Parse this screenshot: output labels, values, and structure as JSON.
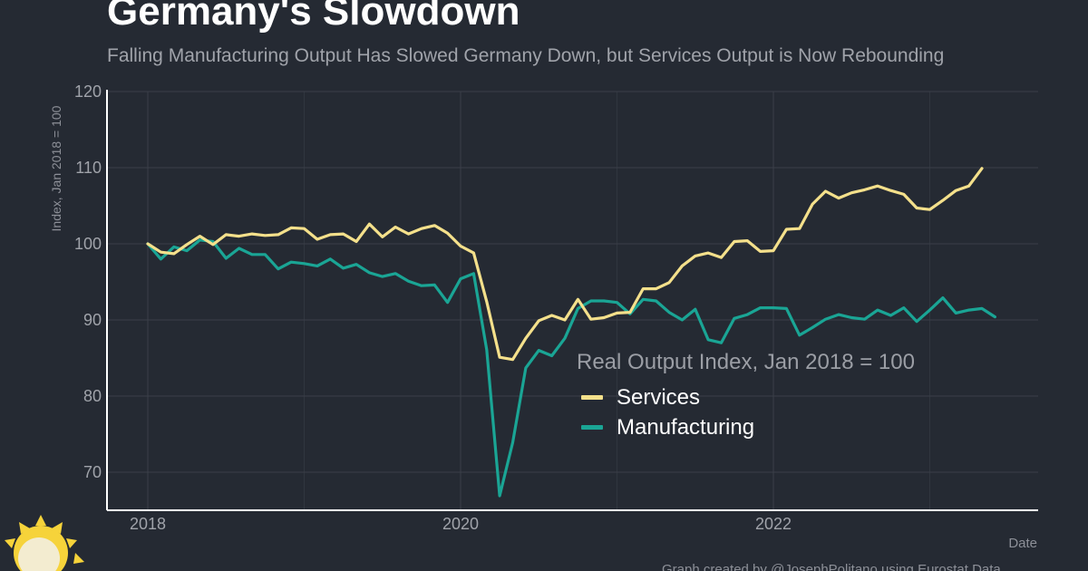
{
  "title": "Germany's Slowdown",
  "subtitle": "Falling Manufacturing Output Has Slowed Germany Down, but Services Output is Now Rebounding",
  "caption": "Graph created by @JosephPolitano using Eurostat Data",
  "colors": {
    "background": "#252a33",
    "grid": "#3a3f48",
    "axis": "#ffffff",
    "services": "#f4e08b",
    "manufacturing": "#1aa595"
  },
  "chart_data": {
    "type": "line",
    "title": "Germany's Slowdown",
    "subtitle": "Falling Manufacturing Output Has Slowed Germany Down, but Services Output is Now Rebounding",
    "xlabel": "Date",
    "ylabel": "Index, Jan 2018 = 100",
    "ylim": [
      65,
      120
    ],
    "xlim": [
      "2017-11",
      "2023-08"
    ],
    "yticks": [
      70,
      80,
      90,
      100,
      110,
      120
    ],
    "xticks": [
      "2018",
      "2020",
      "2022"
    ],
    "grid": true,
    "legend": {
      "title": "Real Output Index, Jan 2018 = 100",
      "placement": "center-right"
    },
    "x": [
      "2018-01",
      "2018-02",
      "2018-03",
      "2018-04",
      "2018-05",
      "2018-06",
      "2018-07",
      "2018-08",
      "2018-09",
      "2018-10",
      "2018-11",
      "2018-12",
      "2019-01",
      "2019-02",
      "2019-03",
      "2019-04",
      "2019-05",
      "2019-06",
      "2019-07",
      "2019-08",
      "2019-09",
      "2019-10",
      "2019-11",
      "2019-12",
      "2020-01",
      "2020-02",
      "2020-03",
      "2020-04",
      "2020-05",
      "2020-06",
      "2020-07",
      "2020-08",
      "2020-09",
      "2020-10",
      "2020-11",
      "2020-12",
      "2021-01",
      "2021-02",
      "2021-03",
      "2021-04",
      "2021-05",
      "2021-06",
      "2021-07",
      "2021-08",
      "2021-09",
      "2021-10",
      "2021-11",
      "2021-12",
      "2022-01",
      "2022-02",
      "2022-03",
      "2022-04",
      "2022-05",
      "2022-06",
      "2022-07",
      "2022-08",
      "2022-09",
      "2022-10",
      "2022-11",
      "2022-12",
      "2023-01",
      "2023-02",
      "2023-03",
      "2023-04",
      "2023-05",
      "2023-06"
    ],
    "series": [
      {
        "name": "Services",
        "values": [
          100.0,
          98.9,
          98.7,
          99.9,
          101.0,
          99.9,
          101.2,
          101.0,
          101.3,
          101.1,
          101.2,
          102.1,
          102.0,
          100.6,
          101.2,
          101.3,
          100.3,
          102.6,
          100.9,
          102.2,
          101.3,
          102.0,
          102.4,
          101.4,
          99.7,
          98.8,
          92.4,
          85.1,
          84.8,
          87.6,
          89.9,
          90.6,
          90.0,
          92.7,
          90.1,
          90.3,
          90.9,
          91.0,
          94.1,
          94.1,
          94.9,
          97.1,
          98.4,
          98.8,
          98.2,
          100.3,
          100.4,
          99.0,
          99.1,
          101.9,
          102.0,
          105.2,
          106.9,
          106.0,
          106.7,
          107.1,
          107.6,
          107.0,
          106.5,
          104.7,
          104.5,
          105.7,
          107.0,
          107.6,
          109.9,
          null
        ],
        "color": "#f4e08b"
      },
      {
        "name": "Manufacturing",
        "values": [
          100.0,
          98.0,
          99.6,
          99.1,
          100.5,
          100.3,
          98.1,
          99.4,
          98.6,
          98.6,
          96.7,
          97.6,
          97.4,
          97.1,
          98.0,
          96.8,
          97.3,
          96.2,
          95.7,
          96.1,
          95.1,
          94.5,
          94.6,
          92.3,
          95.4,
          96.1,
          86.1,
          66.9,
          73.9,
          83.7,
          86.0,
          85.3,
          87.6,
          91.5,
          92.5,
          92.5,
          92.3,
          90.8,
          92.7,
          92.5,
          91.0,
          90.0,
          91.4,
          87.4,
          87.0,
          90.2,
          90.7,
          91.6,
          91.6,
          91.5,
          88.0,
          89.0,
          90.1,
          90.7,
          90.3,
          90.1,
          91.3,
          90.6,
          91.6,
          89.8,
          91.3,
          92.9,
          90.9,
          91.3,
          91.5,
          90.4
        ],
        "color": "#1aa595"
      }
    ]
  }
}
